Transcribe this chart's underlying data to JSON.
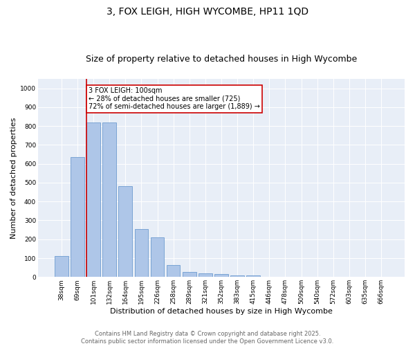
{
  "title": "3, FOX LEIGH, HIGH WYCOMBE, HP11 1QD",
  "subtitle": "Size of property relative to detached houses in High Wycombe",
  "xlabel": "Distribution of detached houses by size in High Wycombe",
  "ylabel": "Number of detached properties",
  "categories": [
    "38sqm",
    "69sqm",
    "101sqm",
    "132sqm",
    "164sqm",
    "195sqm",
    "226sqm",
    "258sqm",
    "289sqm",
    "321sqm",
    "352sqm",
    "383sqm",
    "415sqm",
    "446sqm",
    "478sqm",
    "509sqm",
    "540sqm",
    "572sqm",
    "603sqm",
    "635sqm",
    "666sqm"
  ],
  "values": [
    110,
    635,
    820,
    820,
    480,
    255,
    210,
    65,
    28,
    20,
    15,
    10,
    10,
    0,
    0,
    0,
    0,
    0,
    0,
    0,
    0
  ],
  "bar_color": "#aec6e8",
  "bar_edge_color": "#5b8fc9",
  "highlight_index": 2,
  "highlight_color": "#cc0000",
  "annotation_text": "3 FOX LEIGH: 100sqm\n← 28% of detached houses are smaller (725)\n72% of semi-detached houses are larger (1,889) →",
  "annotation_box_color": "#cc0000",
  "ylim": [
    0,
    1050
  ],
  "yticks": [
    0,
    100,
    200,
    300,
    400,
    500,
    600,
    700,
    800,
    900,
    1000
  ],
  "background_color": "#e8eef7",
  "footer": "Contains HM Land Registry data © Crown copyright and database right 2025.\nContains public sector information licensed under the Open Government Licence v3.0.",
  "title_fontsize": 10,
  "subtitle_fontsize": 9,
  "xlabel_fontsize": 8,
  "ylabel_fontsize": 8,
  "annotation_fontsize": 7,
  "tick_fontsize": 6.5,
  "footer_fontsize": 6
}
